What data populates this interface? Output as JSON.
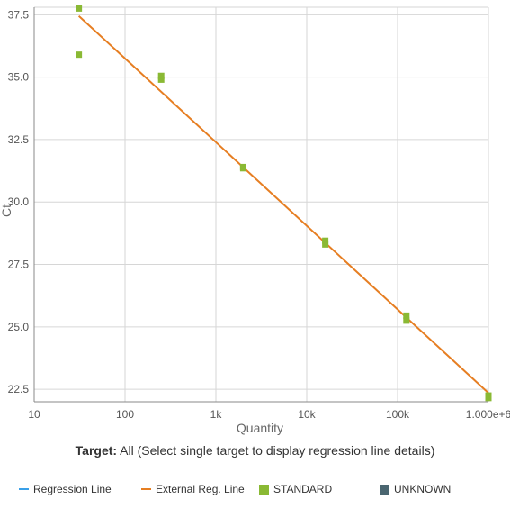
{
  "chart_data": {
    "type": "scatter",
    "xscale": "log",
    "xlabel": "Quantity",
    "ylabel": "Ct",
    "xlim": [
      10,
      1000000
    ],
    "ylim": [
      22.0,
      37.8
    ],
    "x_ticks": [
      {
        "value": 10,
        "label": "10"
      },
      {
        "value": 100,
        "label": "100"
      },
      {
        "value": 1000,
        "label": "1k"
      },
      {
        "value": 10000,
        "label": "10k"
      },
      {
        "value": 100000,
        "label": "100k"
      },
      {
        "value": 1000000,
        "label": "1.000e+6"
      }
    ],
    "y_ticks": [
      {
        "value": 22.5,
        "label": "22.5"
      },
      {
        "value": 25.0,
        "label": "25.0"
      },
      {
        "value": 27.5,
        "label": "27.5"
      },
      {
        "value": 30.0,
        "label": "30.0"
      },
      {
        "value": 32.5,
        "label": "32.5"
      },
      {
        "value": 35.0,
        "label": "35.0"
      },
      {
        "value": 37.5,
        "label": "37.5"
      }
    ],
    "grid": true,
    "series": [
      {
        "name": "STANDARD",
        "kind": "points",
        "color": "#8ab934",
        "points": [
          {
            "x": 31,
            "y": 37.75
          },
          {
            "x": 31,
            "y": 35.9
          },
          {
            "x": 250,
            "y": 35.05
          },
          {
            "x": 250,
            "y": 34.9
          },
          {
            "x": 2000,
            "y": 31.4
          },
          {
            "x": 2000,
            "y": 31.35
          },
          {
            "x": 16000,
            "y": 28.45
          },
          {
            "x": 16000,
            "y": 28.3
          },
          {
            "x": 125000,
            "y": 25.45
          },
          {
            "x": 125000,
            "y": 25.25
          },
          {
            "x": 1000000,
            "y": 22.25
          },
          {
            "x": 1000000,
            "y": 22.15
          }
        ]
      },
      {
        "name": "External Reg. Line",
        "kind": "line",
        "color": "#e67e22",
        "points": [
          {
            "x": 31,
            "y": 37.45
          },
          {
            "x": 1000000,
            "y": 22.35
          }
        ]
      }
    ]
  },
  "caption": {
    "bold": "Target:",
    "text": " All (Select single target to display regression line details)"
  },
  "legend": [
    {
      "label": "Regression Line",
      "type": "line",
      "color": "#3aa0e8"
    },
    {
      "label": "External Reg. Line",
      "type": "line",
      "color": "#e67e22"
    },
    {
      "label": "STANDARD",
      "type": "box",
      "color": "#8ab934"
    },
    {
      "label": "UNKNOWN",
      "type": "box",
      "color": "#4a6670"
    }
  ]
}
